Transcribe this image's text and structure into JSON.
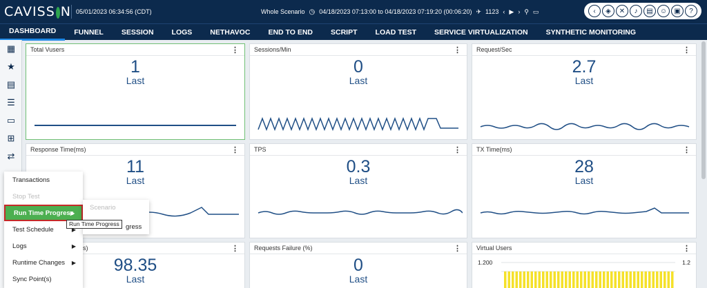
{
  "app": {
    "logo": "CAVISSON"
  },
  "header": {
    "datetime": "05/01/2023 06:34:56 (CDT)",
    "scenario_label": "Whole Scenario",
    "range": "04/18/2023 07:13:00 to 04/18/2023 07:19:20 (00:06:20)",
    "count": "1123"
  },
  "top_icons": [
    "chevron-left-icon",
    "drop-icon",
    "cross-icon",
    "bell-icon",
    "mail-icon",
    "user-icon",
    "monitor-icon",
    "help-icon"
  ],
  "nav": {
    "tabs": [
      "DASHBOARD",
      "FUNNEL",
      "SESSION",
      "LOGS",
      "NETHAVOC",
      "END TO END",
      "SCRIPT",
      "LOAD TEST",
      "SERVICE VIRTUALIZATION",
      "SYNTHETIC MONITORING"
    ],
    "active": "DASHBOARD"
  },
  "panels": [
    {
      "title": "Total Vusers",
      "value": "1",
      "label": "Last",
      "trend": "flat"
    },
    {
      "title": "Sessions/Min",
      "value": "0",
      "label": "Last",
      "trend": "sawtooth"
    },
    {
      "title": "Request/Sec",
      "value": "2.7",
      "label": "Last",
      "trend": "wavy"
    },
    {
      "title": "Response Time(ms)",
      "value": "11",
      "label": "Last",
      "trend": "wavy"
    },
    {
      "title": "TPS",
      "value": "0.3",
      "label": "Last",
      "trend": "wavy"
    },
    {
      "title": "TX Time(ms)",
      "value": "28",
      "label": "Last",
      "trend": "wavy"
    },
    {
      "title": "s)",
      "value": "98.35",
      "label": "Last"
    },
    {
      "title": "Requests Failure (%)",
      "value": "0",
      "label": "Last"
    },
    {
      "title": "Virtual Users",
      "y_left": "1.200",
      "y_right": "1.2"
    }
  ],
  "context_menu": {
    "items": [
      {
        "label": "Transactions",
        "state": "enabled",
        "submenu": false
      },
      {
        "label": "Stop Test",
        "state": "disabled",
        "submenu": false
      },
      {
        "label": "Run Time Progress",
        "state": "active",
        "submenu": true
      },
      {
        "label": "Test Schedule",
        "state": "enabled",
        "submenu": true
      },
      {
        "label": "Logs",
        "state": "enabled",
        "submenu": true
      },
      {
        "label": "Runtime Changes",
        "state": "enabled",
        "submenu": true
      },
      {
        "label": "Sync Point(s)",
        "state": "enabled",
        "submenu": false
      }
    ],
    "submenu": [
      {
        "label": "Scenario",
        "state": "disabled"
      },
      {
        "label": "gress",
        "state": "enabled"
      }
    ],
    "tooltip": "Run Time Progress"
  },
  "colors": {
    "navy": "#0c2a4d",
    "value_blue": "#1f4e85",
    "active_green": "#4caf50",
    "highlight_red": "#c62828",
    "bar_yellow": "#f5e12a"
  }
}
